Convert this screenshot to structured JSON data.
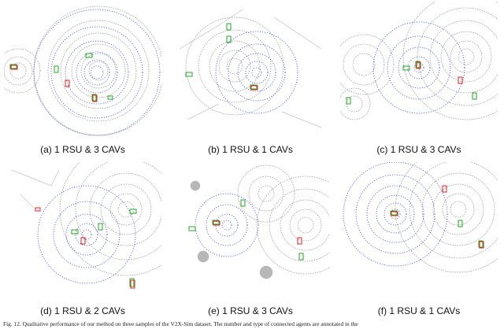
{
  "panels": [
    {
      "label": "(a) 1 RSU & 3 CAVs",
      "lidar_colors": {
        "rsu": "#7a7a7a",
        "cav": "#1f2fd0"
      }
    },
    {
      "label": "(b) 1 RSU & 1 CAVs",
      "lidar_colors": {
        "rsu": "#7a7a7a",
        "cav": "#1f2fd0"
      }
    },
    {
      "label": "(c) 1 RSU & 3 CAVs",
      "lidar_colors": {
        "rsu": "#7a7a7a",
        "cav": "#1f2fd0"
      }
    },
    {
      "label": "(d) 1 RSU & 2 CAVs",
      "lidar_colors": {
        "rsu": "#7a7a7a",
        "cav": "#1f2fd0"
      }
    },
    {
      "label": "(e) 1 RSU & 3 CAVs",
      "lidar_colors": {
        "rsu": "#7a7a7a",
        "cav": "#1f2fd0"
      }
    },
    {
      "label": "(f) 1 RSU & 1 CAVs",
      "lidar_colors": {
        "rsu": "#7a7a7a",
        "cav": "#1f2fd0"
      }
    }
  ],
  "box_colors": {
    "ground_truth": "#22aa22",
    "prediction": "#e02020"
  },
  "figure_caption": "Fig. 12.  Qualitative performance of our method on three samples of the V2X-Sim dataset. The number and type of connected agents are annotated in the"
}
